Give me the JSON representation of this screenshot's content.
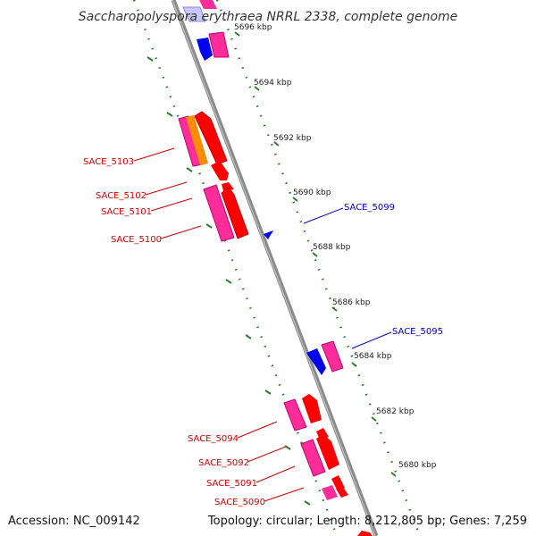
{
  "title": "Saccharopolyspora erythraea NRRL 2338, complete genome",
  "accession": "Accession: NC_009142",
  "summary": "Topology: circular; Length: 8,212,805 bp; Genes: 7,259",
  "colors": {
    "backbone": "#808080",
    "tick": "#2e7d2e",
    "forward_label": "#d40000",
    "reverse_label": "#0000c8",
    "gene_red": "#ff0000",
    "gene_pink": "#ff2d9a",
    "gene_orange": "#ff8c00",
    "gene_blue": "#0000ee"
  },
  "kbp_labels": [
    "5696 kbp",
    "5694 kbp",
    "5692 kbp",
    "5690 kbp",
    "5688 kbp",
    "5686 kbp",
    "5684 kbp",
    "5682 kbp",
    "5680 kbp"
  ],
  "gene_labels_left": [
    "SACE_5103",
    "SACE_5102",
    "SACE_5101",
    "SACE_5100",
    "SACE_5094",
    "SACE_5092",
    "SACE_5091",
    "SACE_5090"
  ],
  "gene_labels_right": [
    "SACE_5099",
    "SACE_5095"
  ]
}
